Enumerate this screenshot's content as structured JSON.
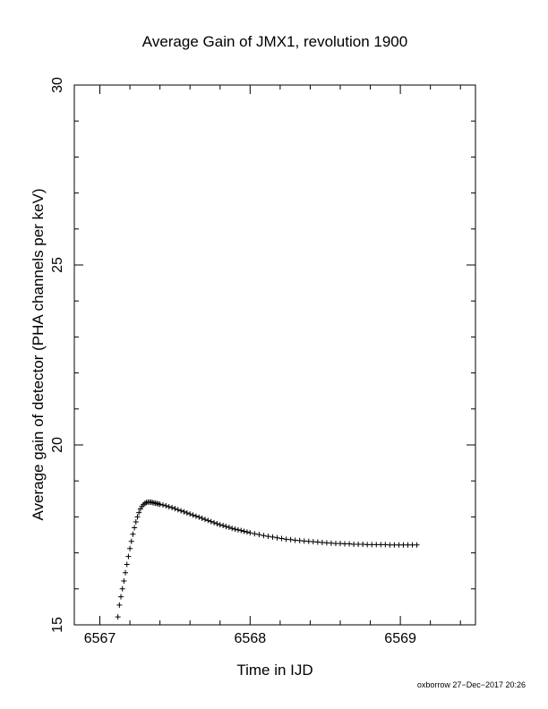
{
  "chart_data": {
    "type": "scatter",
    "title": "Average Gain of JMX1, revolution 1900",
    "xlabel": "Time in IJD",
    "ylabel": "Average gain of detector (PHA channels per keV)",
    "xlim": [
      6566.83,
      6569.5
    ],
    "ylim": [
      15,
      30
    ],
    "x_ticks": [
      6567,
      6568,
      6569
    ],
    "x_tick_labels": [
      "6567",
      "6568",
      "6569"
    ],
    "y_ticks": [
      15,
      20,
      25,
      30
    ],
    "y_tick_labels": [
      "15",
      "20",
      "25",
      "30"
    ],
    "marker": "+",
    "grid": false,
    "legend": "none",
    "color": "#000000",
    "series": [
      {
        "x": [
          6567.12,
          6567.13,
          6567.14,
          6567.15,
          6567.16,
          6567.17,
          6567.18,
          6567.19,
          6567.2,
          6567.21,
          6567.22,
          6567.23,
          6567.24,
          6567.25,
          6567.26,
          6567.27,
          6567.28,
          6567.29,
          6567.3,
          6567.31,
          6567.32,
          6567.33,
          6567.34,
          6567.35,
          6567.36,
          6567.37,
          6567.38,
          6567.39,
          6567.4,
          6567.42,
          6567.44,
          6567.46,
          6567.48,
          6567.5,
          6567.52,
          6567.54,
          6567.56,
          6567.58,
          6567.6,
          6567.62,
          6567.64,
          6567.66,
          6567.68,
          6567.7,
          6567.72,
          6567.74,
          6567.76,
          6567.78,
          6567.8,
          6567.82,
          6567.84,
          6567.86,
          6567.88,
          6567.9,
          6567.92,
          6567.94,
          6567.96,
          6567.98,
          6568.0,
          6568.03,
          6568.06,
          6568.09,
          6568.12,
          6568.15,
          6568.18,
          6568.21,
          6568.24,
          6568.27,
          6568.3,
          6568.33,
          6568.36,
          6568.39,
          6568.42,
          6568.45,
          6568.48,
          6568.51,
          6568.54,
          6568.57,
          6568.6,
          6568.63,
          6568.66,
          6568.69,
          6568.72,
          6568.75,
          6568.78,
          6568.81,
          6568.84,
          6568.87,
          6568.9,
          6568.93,
          6568.96,
          6568.99,
          6569.02,
          6569.05,
          6569.08,
          6569.11
        ],
        "y": [
          15.22,
          15.55,
          15.78,
          16.0,
          16.22,
          16.45,
          16.68,
          16.9,
          17.12,
          17.32,
          17.52,
          17.7,
          17.86,
          18.0,
          18.12,
          18.22,
          18.29,
          18.34,
          18.38,
          18.4,
          18.41,
          18.41,
          18.41,
          18.4,
          18.39,
          18.38,
          18.37,
          18.36,
          18.35,
          18.33,
          18.31,
          18.28,
          18.26,
          18.23,
          18.2,
          18.17,
          18.14,
          18.11,
          18.08,
          18.05,
          18.02,
          17.99,
          17.96,
          17.93,
          17.9,
          17.87,
          17.84,
          17.81,
          17.78,
          17.76,
          17.73,
          17.71,
          17.68,
          17.66,
          17.64,
          17.62,
          17.6,
          17.58,
          17.56,
          17.53,
          17.51,
          17.48,
          17.46,
          17.44,
          17.42,
          17.4,
          17.38,
          17.37,
          17.35,
          17.34,
          17.33,
          17.32,
          17.31,
          17.3,
          17.29,
          17.28,
          17.27,
          17.26,
          17.26,
          17.25,
          17.25,
          17.24,
          17.24,
          17.24,
          17.23,
          17.23,
          17.23,
          17.23,
          17.23,
          17.22,
          17.22,
          17.22,
          17.22,
          17.22,
          17.22,
          17.22
        ]
      }
    ]
  },
  "footer": "oxborrow 27−Dec−2017 20:26"
}
